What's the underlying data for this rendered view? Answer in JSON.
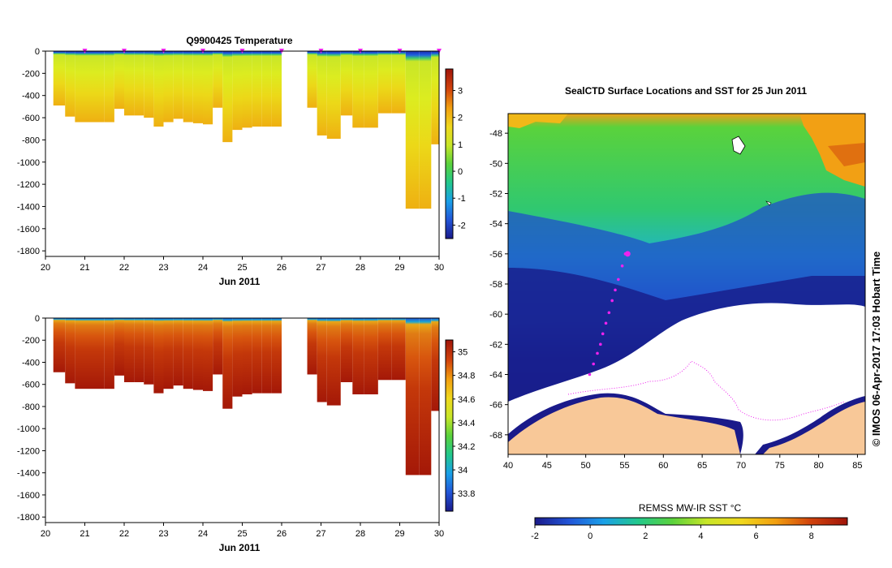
{
  "title_left": "Q9900425  Temperature",
  "title_right": "SealCTD Surface Locations and SST for 25 Jun 2011",
  "xlabel_left": "Jun 2011",
  "colorbar_label": "REMSS MW-IR SST °C",
  "copyright": "© IMOS 06-Apr-2017 17:03 Hobart Time",
  "chart_data": [
    {
      "type": "heatmap",
      "name": "temperature-section",
      "title": "Q9900425  Temperature",
      "xlabel": "Jun 2011",
      "ylabel": "",
      "xlim": [
        20,
        30
      ],
      "ylim": [
        -1850,
        0
      ],
      "xticks": [
        "20",
        "21",
        "22",
        "23",
        "24",
        "25",
        "26",
        "27",
        "28",
        "29",
        "30"
      ],
      "yticks": [
        "0",
        "-200",
        "-400",
        "-600",
        "-800",
        "-1000",
        "-1200",
        "-1400",
        "-1600",
        "-1800"
      ],
      "profile_times": [
        20.2,
        20.5,
        20.75,
        21.0,
        21.5,
        21.75,
        22.0,
        22.25,
        22.5,
        22.75,
        23.0,
        23.25,
        23.5,
        23.75,
        24.0,
        24.25,
        24.5,
        24.75,
        25.0,
        25.25,
        25.5,
        25.75,
        26.0,
        26.65,
        26.9,
        27.15,
        27.5,
        27.8,
        28.1,
        28.45,
        28.8,
        29.15,
        29.5,
        29.8,
        30.0
      ],
      "profile_max_depth": [
        -490,
        -590,
        -640,
        -640,
        -640,
        -520,
        -580,
        -580,
        -600,
        -680,
        -640,
        -610,
        -640,
        -650,
        -660,
        -510,
        -820,
        -710,
        -690,
        -680,
        -680,
        -680,
        -680,
        -510,
        -760,
        -790,
        -580,
        -690,
        -690,
        -560,
        -560,
        -1420,
        -1420,
        -840,
        -840
      ],
      "surface_markers": [
        "21",
        "22",
        "23",
        "24",
        "25",
        "26",
        "27",
        "28",
        "29",
        "30"
      ],
      "colorbar": {
        "min": -2.5,
        "max": 3.8,
        "ticks": [
          "3",
          "2",
          "1",
          "0",
          "-1",
          "-2"
        ]
      },
      "colormap": [
        "#1a1a8a",
        "#2255d8",
        "#1aa0e8",
        "#22c88c",
        "#5ad23c",
        "#c8e628",
        "#f0d81e",
        "#f2a010",
        "#d2440c",
        "#a0140a"
      ]
    },
    {
      "type": "heatmap",
      "name": "salinity-section",
      "title": "",
      "xlabel": "Jun 2011",
      "ylabel": "",
      "xlim": [
        20,
        30
      ],
      "ylim": [
        -1850,
        0
      ],
      "xticks": [
        "20",
        "21",
        "22",
        "23",
        "24",
        "25",
        "26",
        "27",
        "28",
        "29",
        "30"
      ],
      "yticks": [
        "0",
        "-200",
        "-400",
        "-600",
        "-800",
        "-1000",
        "-1200",
        "-1400",
        "-1600",
        "-1800"
      ],
      "colorbar": {
        "min": 33.65,
        "max": 35.1,
        "ticks": [
          "35",
          "34.8",
          "34.6",
          "34.4",
          "34.2",
          "34",
          "33.8"
        ]
      },
      "colormap": [
        "#1a1a8a",
        "#2255d8",
        "#1aa0e8",
        "#22c88c",
        "#5ad23c",
        "#c8e628",
        "#f0d81e",
        "#f2a010",
        "#d2440c",
        "#a0140a"
      ]
    },
    {
      "type": "heatmap",
      "name": "sst-map",
      "title": "SealCTD Surface Locations and SST for 25 Jun 2011",
      "xlabel": "",
      "ylabel": "",
      "xlim": [
        40,
        86
      ],
      "ylim": [
        -69.3,
        -46.7
      ],
      "xticks": [
        "40",
        "45",
        "50",
        "55",
        "60",
        "65",
        "70",
        "75",
        "80",
        "85"
      ],
      "yticks": [
        "-48",
        "-50",
        "-52",
        "-54",
        "-56",
        "-58",
        "-60",
        "-62",
        "-64",
        "-66",
        "-68"
      ],
      "track_lon": [
        55.1,
        54.7,
        54.2,
        53.8,
        53.4,
        53.0,
        52.6,
        52.2,
        51.9,
        51.5,
        51.0,
        50.5
      ],
      "track_lat": [
        -56.0,
        -56.8,
        -57.7,
        -58.4,
        -59.1,
        -59.9,
        -60.6,
        -61.3,
        -62.0,
        -62.6,
        -63.3,
        -64.0
      ],
      "current_position": {
        "lon": 55.4,
        "lat": -56.0
      },
      "colorbar": {
        "min": -2,
        "max": 9.3,
        "ticks": [
          "-2",
          "0",
          "2",
          "4",
          "6",
          "8"
        ],
        "label": "REMSS MW-IR SST °C"
      },
      "colormap": [
        "#1a1a8a",
        "#2255d8",
        "#1aa0e8",
        "#22c88c",
        "#5ad23c",
        "#c8e628",
        "#f0d81e",
        "#f2a010",
        "#d2440c",
        "#a0140a"
      ]
    }
  ]
}
